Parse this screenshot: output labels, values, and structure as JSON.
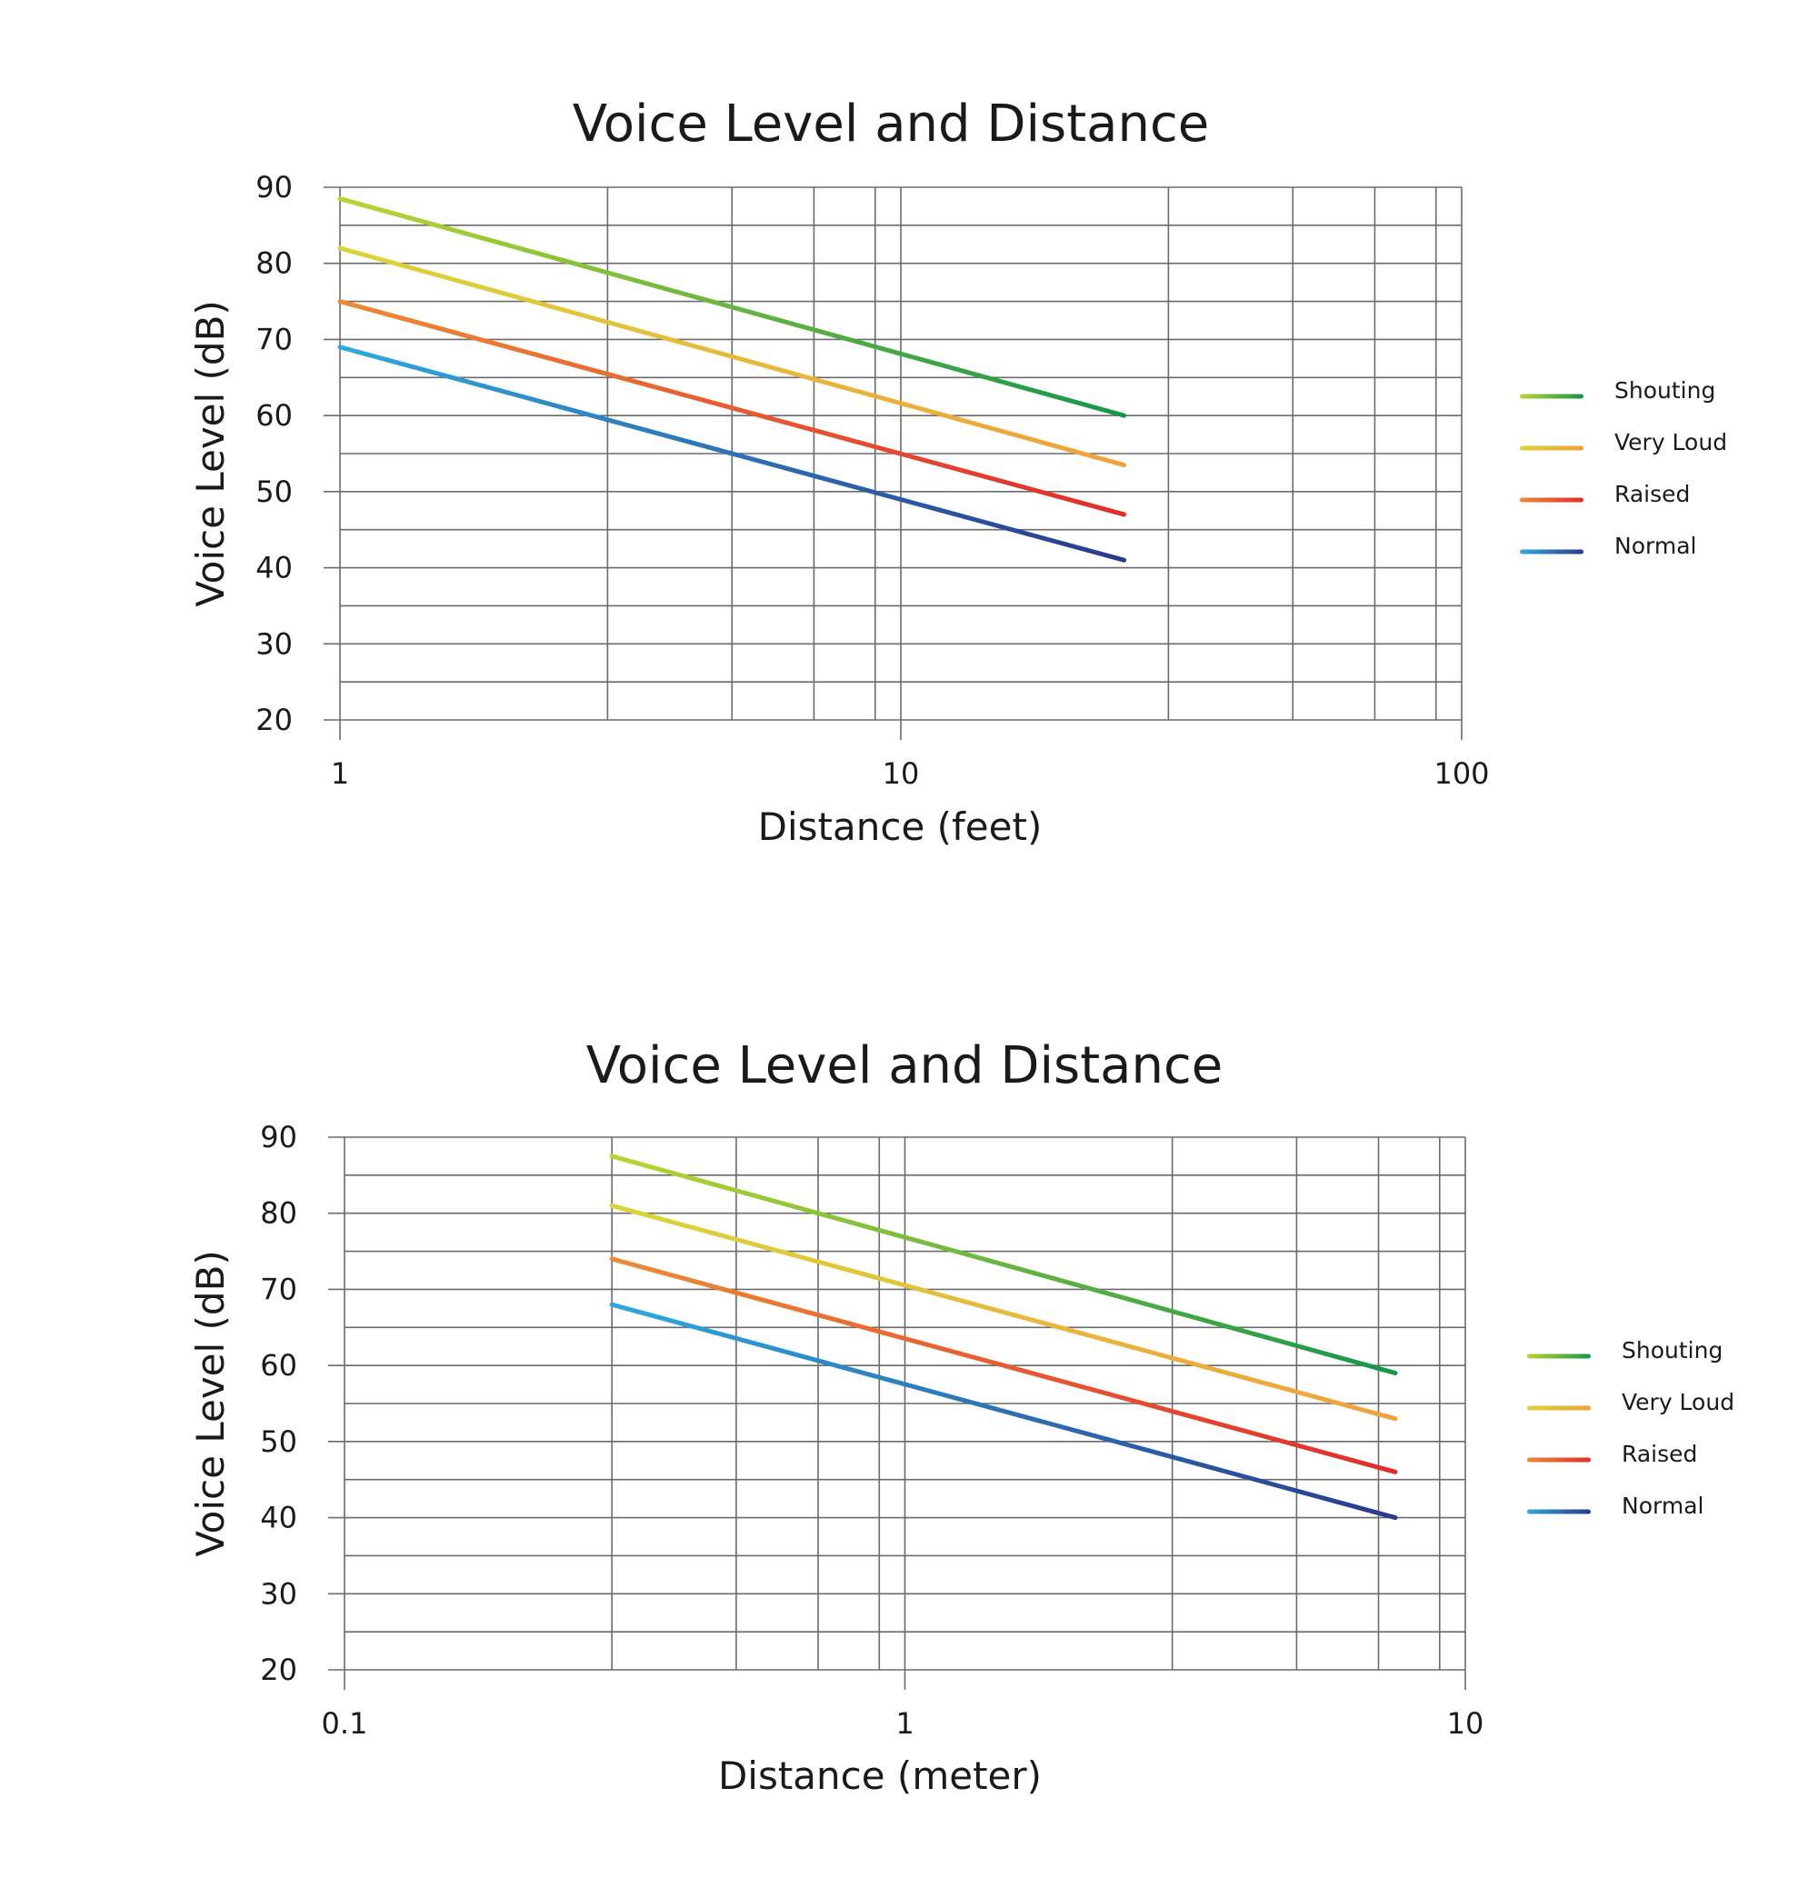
{
  "chart_data": [
    {
      "type": "line",
      "title": "Voice Level and Distance",
      "xlabel": "Distance (feet)",
      "ylabel": "Voice Level (dB)",
      "x_scale": "log",
      "xlim": [
        1,
        100
      ],
      "ylim": [
        20,
        90
      ],
      "x_ticks": [
        "1",
        "10",
        "100"
      ],
      "y_ticks": [
        "20",
        "30",
        "40",
        "50",
        "60",
        "70",
        "80",
        "90"
      ],
      "grid": true,
      "legend": "right",
      "series": [
        {
          "name": "Shouting",
          "x": [
            1,
            25
          ],
          "y": [
            88.5,
            60
          ],
          "colors": [
            "#b9d532",
            "#14964a"
          ]
        },
        {
          "name": "Very Loud",
          "x": [
            1,
            25
          ],
          "y": [
            82,
            53.5
          ],
          "colors": [
            "#dad53a",
            "#f2a03a"
          ]
        },
        {
          "name": "Raised",
          "x": [
            1,
            25
          ],
          "y": [
            75,
            47
          ],
          "colors": [
            "#ee8a33",
            "#e12c2c"
          ]
        },
        {
          "name": "Normal",
          "x": [
            1,
            25
          ],
          "y": [
            69,
            41
          ],
          "colors": [
            "#2ea8e0",
            "#2a3a8e"
          ]
        }
      ]
    },
    {
      "type": "line",
      "title": "Voice Level and Distance",
      "xlabel": "Distance (meter)",
      "ylabel": "Voice Level (dB)",
      "x_scale": "log",
      "xlim": [
        0.1,
        10
      ],
      "ylim": [
        20,
        90
      ],
      "x_ticks": [
        "0.1",
        "1",
        "10"
      ],
      "y_ticks": [
        "20",
        "30",
        "40",
        "50",
        "60",
        "70",
        "80",
        "90"
      ],
      "grid": true,
      "legend": "right",
      "series": [
        {
          "name": "Shouting",
          "x": [
            0.3,
            7.5
          ],
          "y": [
            87.5,
            59
          ],
          "colors": [
            "#b9d532",
            "#14964a"
          ]
        },
        {
          "name": "Very Loud",
          "x": [
            0.3,
            7.5
          ],
          "y": [
            81,
            53
          ],
          "colors": [
            "#dad53a",
            "#f2a03a"
          ]
        },
        {
          "name": "Raised",
          "x": [
            0.3,
            7.5
          ],
          "y": [
            74,
            46
          ],
          "colors": [
            "#ee8a33",
            "#e12c2c"
          ]
        },
        {
          "name": "Normal",
          "x": [
            0.3,
            7.5
          ],
          "y": [
            68,
            40
          ],
          "colors": [
            "#2ea8e0",
            "#2a3a8e"
          ]
        }
      ]
    }
  ]
}
